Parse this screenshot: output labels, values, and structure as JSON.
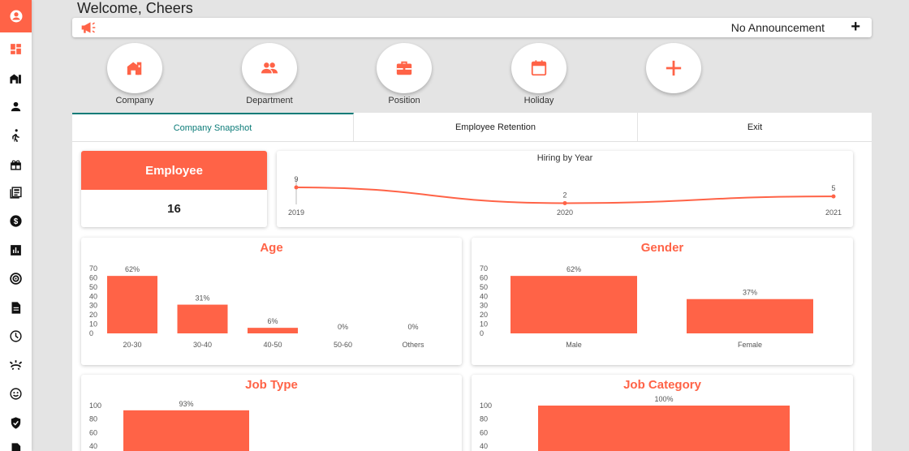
{
  "header": {
    "welcome": "Welcome, Cheers",
    "announcement": "No Announcement",
    "add_label": "+"
  },
  "theme": {
    "accent": "#ff6347",
    "tab_active": "#0b7b78"
  },
  "sidebar": {
    "items": [
      {
        "icon": "dashboard-icon"
      },
      {
        "icon": "company-icon"
      },
      {
        "icon": "person-icon"
      },
      {
        "icon": "walking-person-icon"
      },
      {
        "icon": "gift-icon"
      },
      {
        "icon": "newspaper-icon"
      },
      {
        "icon": "dollar-icon"
      },
      {
        "icon": "bar-chart-icon"
      },
      {
        "icon": "target-icon"
      },
      {
        "icon": "document-icon"
      },
      {
        "icon": "clock-icon"
      },
      {
        "icon": "alarm-icon"
      },
      {
        "icon": "smiley-icon"
      },
      {
        "icon": "shield-check-icon"
      },
      {
        "icon": "report-icon"
      }
    ]
  },
  "quick_actions": [
    {
      "label": "Company",
      "icon": "company-icon"
    },
    {
      "label": "Department",
      "icon": "people-icon"
    },
    {
      "label": "Position",
      "icon": "briefcase-icon"
    },
    {
      "label": "Holiday",
      "icon": "calendar-icon"
    },
    {
      "label": "",
      "icon": "plus-icon"
    }
  ],
  "tabs": [
    {
      "label": "Company Snapshot",
      "active": true
    },
    {
      "label": "Employee Retention",
      "active": false
    },
    {
      "label": "Exit",
      "active": false
    }
  ],
  "employee_card": {
    "title": "Employee",
    "count": "16"
  },
  "hiring_card": {
    "title": "Hiring by Year"
  },
  "age_card": {
    "title": "Age"
  },
  "gender_card": {
    "title": "Gender"
  },
  "jobtype_card": {
    "title": "Job Type"
  },
  "jobcat_card": {
    "title": "Job Category"
  },
  "chart_data": [
    {
      "id": "hiring",
      "type": "line",
      "title": "Hiring by Year",
      "x": [
        "2019",
        "2020",
        "2021"
      ],
      "values": [
        9,
        2,
        5
      ],
      "data_labels": [
        "9",
        "2",
        "5"
      ]
    },
    {
      "id": "age",
      "type": "bar",
      "title": "Age",
      "categories": [
        "20-30",
        "30-40",
        "40-50",
        "50-60",
        "Others"
      ],
      "values": [
        62,
        31,
        6,
        0,
        0
      ],
      "data_labels": [
        "62%",
        "31%",
        "6%",
        "0%",
        "0%"
      ],
      "yticks": [
        "0",
        "10",
        "20",
        "30",
        "40",
        "50",
        "60",
        "70"
      ],
      "ylim": [
        0,
        70
      ]
    },
    {
      "id": "gender",
      "type": "bar",
      "title": "Gender",
      "categories": [
        "Male",
        "Female"
      ],
      "values": [
        62,
        37
      ],
      "data_labels": [
        "62%",
        "37%"
      ],
      "yticks": [
        "0",
        "10",
        "20",
        "30",
        "40",
        "50",
        "60",
        "70"
      ],
      "ylim": [
        0,
        70
      ]
    },
    {
      "id": "jobtype",
      "type": "bar",
      "title": "Job Type",
      "categories": [
        ""
      ],
      "values": [
        93
      ],
      "data_labels": [
        "93%"
      ],
      "yticks": [
        "40",
        "60",
        "80",
        "100"
      ],
      "ylim": [
        0,
        100
      ]
    },
    {
      "id": "jobcat",
      "type": "bar",
      "title": "Job Category",
      "categories": [
        ""
      ],
      "values": [
        100
      ],
      "data_labels": [
        "100%"
      ],
      "yticks": [
        "40",
        "60",
        "80",
        "100"
      ],
      "ylim": [
        0,
        100
      ]
    }
  ]
}
